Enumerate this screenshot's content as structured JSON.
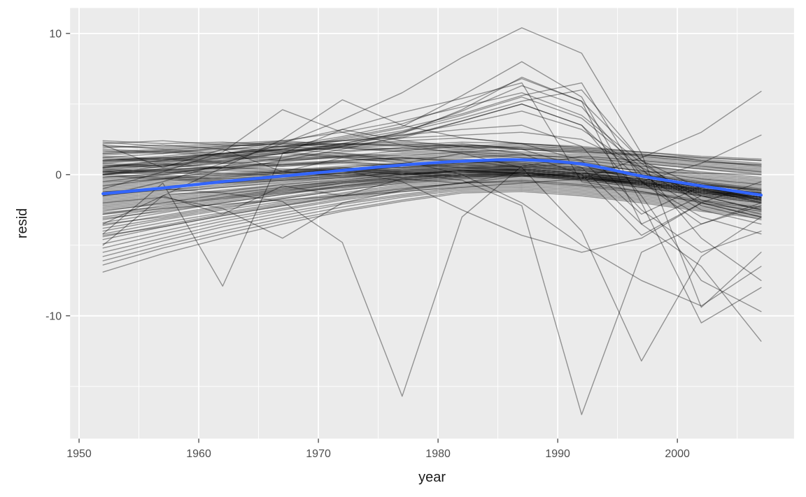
{
  "style": {
    "panel_fill": "#EBEBEB",
    "grid_color": "#FFFFFF",
    "tick_mark_color": "#333333",
    "tick_label_color": "#4D4D4D",
    "axis_title_color": "#1A1A1A",
    "series_color": "#000000",
    "series_opacity": 0.38,
    "smooth_color": "#3366FF"
  },
  "chart_data": {
    "type": "line",
    "title": "",
    "xlabel": "year",
    "ylabel": "resid",
    "legend": "none",
    "grid": true,
    "xlim": [
      1949.25,
      2009.75
    ],
    "ylim": [
      -18.7,
      11.8
    ],
    "x_ticks": [
      1950,
      1960,
      1970,
      1980,
      1990,
      2000
    ],
    "x_minor": [
      1955,
      1965,
      1975,
      1985,
      1995,
      2005
    ],
    "y_ticks": [
      -10,
      0,
      10
    ],
    "y_minor": [
      -15,
      -5,
      5
    ],
    "x": [
      1952,
      1957,
      1962,
      1967,
      1972,
      1977,
      1982,
      1987,
      1992,
      1997,
      2002,
      2007
    ],
    "smooth": {
      "name": "loess-smooth",
      "values": [
        -1.35,
        -0.95,
        -0.5,
        -0.1,
        0.3,
        0.68,
        0.95,
        1.05,
        0.75,
        -0.1,
        -0.8,
        -1.45
      ]
    },
    "series": [
      [
        -4.2,
        -0.6,
        -7.9,
        1.5,
        3.2,
        2.4,
        2.0,
        1.8,
        1.6,
        1.4,
        1.2,
        1.0
      ],
      [
        -1.2,
        -1.0,
        -1.3,
        -1.9,
        -4.8,
        -15.7,
        -3.0,
        0.6,
        1.3,
        1.0,
        0.6,
        0.2
      ],
      [
        0.2,
        0.4,
        0.5,
        0.4,
        0.3,
        0.1,
        -0.4,
        -2.2,
        -17.0,
        -5.5,
        -3.5,
        -2.2
      ],
      [
        -1.5,
        -0.5,
        0.8,
        2.2,
        3.9,
        5.8,
        8.3,
        10.4,
        8.6,
        1.5,
        -9.4,
        -5.5
      ],
      [
        0.0,
        0.6,
        1.2,
        1.8,
        2.6,
        3.4,
        5.6,
        8.0,
        5.5,
        -2.0,
        -10.5,
        -8.0
      ],
      [
        0.5,
        0.8,
        1.2,
        1.6,
        2.2,
        2.9,
        4.6,
        6.9,
        5.2,
        -3.5,
        -6.5,
        -11.8
      ],
      [
        0.3,
        0.7,
        1.1,
        1.5,
        2.0,
        2.6,
        3.8,
        5.0,
        3.5,
        -1.5,
        -7.5,
        -9.7
      ],
      [
        1.0,
        1.3,
        1.7,
        2.3,
        3.2,
        4.4,
        5.4,
        6.5,
        -0.5,
        -1.2,
        -2.0,
        -2.6
      ],
      [
        -3.5,
        -1.5,
        0.5,
        2.5,
        5.3,
        3.5,
        2.6,
        2.2,
        1.9,
        1.6,
        1.3,
        1.1
      ],
      [
        -1.0,
        0.2,
        1.6,
        4.6,
        3.0,
        2.1,
        1.5,
        1.2,
        1.0,
        0.6,
        0.2,
        -0.2
      ],
      [
        1.5,
        1.7,
        2.0,
        2.2,
        2.4,
        2.6,
        2.8,
        3.0,
        2.5,
        0.5,
        -4.5,
        -7.5
      ],
      [
        0.5,
        1.0,
        1.5,
        2.0,
        2.4,
        2.8,
        3.2,
        3.5,
        2.0,
        -2.5,
        -5.5,
        -4.0
      ],
      [
        1.0,
        1.2,
        1.5,
        1.8,
        1.5,
        1.0,
        0.0,
        -2.0,
        -5.0,
        -7.5,
        -9.3,
        -6.5
      ],
      [
        -1.5,
        -1.0,
        -0.5,
        0.0,
        0.3,
        -0.5,
        -2.5,
        -4.3,
        -5.5,
        -4.5,
        -2.0,
        -0.5
      ],
      [
        -2.8,
        -2.4,
        -2.1,
        -1.8,
        -1.5,
        -1.2,
        -0.9,
        -0.6,
        -0.3,
        1.2,
        3.0,
        5.9
      ],
      [
        0.1,
        0.3,
        0.5,
        0.7,
        0.9,
        1.1,
        1.3,
        1.1,
        0.7,
        -0.5,
        0.8,
        2.8
      ],
      [
        -2.0,
        -1.6,
        -2.4,
        -4.5,
        -2.0,
        -1.1,
        -0.6,
        -0.1,
        0.1,
        0.2,
        0.1,
        0.0
      ],
      [
        0.0,
        0.3,
        0.6,
        0.8,
        1.0,
        1.2,
        1.0,
        0.5,
        -4.0,
        -13.2,
        -5.8,
        -3.0
      ],
      [
        0.6,
        1.0,
        1.4,
        1.9,
        2.5,
        3.3,
        4.3,
        5.6,
        6.5,
        -0.5,
        -3.5,
        -2.0
      ],
      [
        0.0,
        0.4,
        0.9,
        1.5,
        2.2,
        3.0,
        4.0,
        5.2,
        6.0,
        1.0,
        -2.2,
        -3.2
      ],
      [
        0.5,
        0.9,
        1.3,
        1.8,
        2.4,
        3.1,
        4.2,
        5.5,
        4.0,
        0.5,
        -1.5,
        -2.5
      ],
      [
        -0.5,
        0.0,
        0.6,
        1.2,
        2.0,
        3.0,
        4.5,
        6.3,
        4.8,
        0.0,
        -2.5,
        -3.5
      ],
      [
        0.8,
        1.1,
        1.5,
        2.0,
        2.7,
        3.6,
        5.0,
        6.8,
        5.2,
        1.0,
        -1.0,
        -2.0
      ],
      [
        0.2,
        0.6,
        1.0,
        1.5,
        2.1,
        2.8,
        3.6,
        4.5,
        3.2,
        0.3,
        -2.0,
        -3.0
      ],
      [
        -0.8,
        -0.3,
        0.3,
        1.0,
        1.8,
        2.7,
        3.8,
        5.0,
        3.5,
        -0.5,
        -3.0,
        -4.2
      ],
      [
        1.2,
        1.5,
        1.9,
        2.4,
        3.0,
        3.8,
        4.8,
        5.8,
        4.2,
        0.8,
        -1.8,
        -2.8
      ],
      [
        0.4,
        0.7,
        1.0,
        1.3,
        1.6,
        1.9,
        2.2,
        1.8,
        0.5,
        -3.5,
        -1.5,
        -2.5
      ],
      [
        -0.2,
        0.1,
        0.5,
        0.9,
        1.3,
        1.7,
        2.0,
        1.5,
        0.0,
        -4.3,
        -2.0,
        -3.0
      ],
      [
        0.9,
        1.2,
        1.5,
        1.8,
        2.1,
        2.4,
        2.6,
        2.2,
        1.0,
        -2.8,
        -0.8,
        -1.8
      ],
      [
        -5.0,
        -1.5,
        -2.8,
        -0.8,
        -1.5,
        -0.3,
        -0.6,
        0.2,
        -0.2,
        -0.6,
        -1.0,
        -1.4
      ],
      [
        2.1,
        0.5,
        1.8,
        0.2,
        1.2,
        0.8,
        1.5,
        0.5,
        0.9,
        0.2,
        -0.4,
        -0.8
      ],
      [
        2.4,
        2.2,
        2.3,
        2.1,
        2.2,
        2.0,
        2.1,
        1.9,
        1.7,
        1.3,
        0.9,
        0.7
      ],
      [
        2.2,
        2.4,
        2.1,
        2.3,
        2.0,
        2.2,
        1.9,
        2.1,
        1.8,
        1.4,
        1.1,
        0.8
      ],
      [
        2.0,
        1.9,
        2.1,
        2.0,
        2.2,
        2.1,
        2.3,
        2.2,
        1.9,
        1.5,
        1.0,
        0.6
      ],
      [
        1.9,
        2.1,
        1.8,
        2.0,
        1.7,
        1.9,
        1.6,
        1.8,
        1.5,
        1.1,
        0.7,
        0.4
      ],
      [
        1.7,
        1.5,
        1.8,
        1.6,
        1.9,
        1.7,
        2.0,
        1.8,
        1.6,
        1.2,
        0.8,
        0.5
      ],
      [
        1.5,
        1.7,
        1.4,
        1.6,
        1.3,
        1.5,
        1.7,
        1.5,
        1.3,
        0.9,
        0.5,
        0.2
      ],
      [
        2.3,
        2.0,
        2.2,
        2.4,
        2.1,
        2.3,
        2.0,
        2.2,
        2.0,
        1.6,
        1.2,
        1.0
      ],
      [
        1.6,
        1.8,
        1.5,
        1.7,
        1.9,
        1.6,
        1.8,
        1.6,
        1.4,
        1.0,
        0.6,
        0.3
      ],
      [
        1.8,
        1.6,
        1.9,
        1.7,
        2.0,
        1.8,
        2.1,
        1.9,
        1.7,
        1.3,
        0.9,
        0.6
      ],
      [
        1.4,
        1.6,
        1.3,
        1.5,
        1.2,
        1.4,
        1.6,
        1.4,
        1.2,
        0.8,
        0.4,
        0.1
      ],
      [
        2.1,
        1.8,
        2.0,
        2.2,
        1.9,
        2.1,
        1.8,
        2.0,
        1.8,
        1.4,
        1.0,
        0.7
      ],
      [
        1.3,
        1.1,
        1.4,
        1.2,
        1.5,
        1.3,
        1.6,
        1.4,
        1.2,
        0.8,
        0.4,
        0.0
      ],
      [
        1.2,
        1.0,
        1.3,
        1.1,
        1.4,
        1.2,
        1.5,
        1.3,
        1.0,
        0.6,
        0.0,
        -0.4
      ],
      [
        1.0,
        1.2,
        0.9,
        1.1,
        1.3,
        1.0,
        1.2,
        1.4,
        1.1,
        0.7,
        0.1,
        -0.3
      ],
      [
        0.8,
        0.6,
        0.9,
        0.7,
        1.0,
        1.2,
        0.9,
        1.1,
        0.8,
        0.4,
        -0.2,
        -0.6
      ],
      [
        0.6,
        0.8,
        0.5,
        0.7,
        0.9,
        0.6,
        0.8,
        1.0,
        0.7,
        0.3,
        -0.3,
        -0.7
      ],
      [
        0.4,
        0.2,
        0.5,
        0.3,
        0.6,
        0.8,
        0.5,
        0.7,
        0.4,
        0.0,
        -0.6,
        -1.0
      ],
      [
        0.2,
        0.4,
        0.1,
        0.3,
        0.5,
        0.2,
        0.4,
        0.6,
        0.3,
        -0.1,
        -0.7,
        -1.1
      ],
      [
        0.0,
        0.2,
        -0.1,
        0.1,
        0.3,
        0.0,
        0.2,
        0.4,
        0.1,
        -0.3,
        -0.9,
        -1.3
      ],
      [
        -0.2,
        0.0,
        -0.3,
        -0.1,
        0.1,
        -0.2,
        0.0,
        0.2,
        -0.1,
        -0.5,
        -1.1,
        -1.5
      ],
      [
        -0.4,
        -0.2,
        -0.5,
        -0.3,
        -0.1,
        0.1,
        -0.2,
        0.0,
        -0.3,
        -0.7,
        -1.3,
        -1.7
      ],
      [
        0.9,
        1.1,
        0.8,
        1.0,
        1.2,
        0.9,
        1.1,
        0.9,
        0.7,
        0.3,
        -0.3,
        -0.7
      ],
      [
        0.7,
        0.5,
        0.8,
        0.6,
        0.9,
        0.7,
        1.0,
        0.8,
        0.5,
        0.1,
        -0.5,
        -0.9
      ],
      [
        0.5,
        0.7,
        0.4,
        0.6,
        0.8,
        0.5,
        0.7,
        0.5,
        0.3,
        -0.1,
        -0.7,
        -1.1
      ],
      [
        0.3,
        0.1,
        0.4,
        0.2,
        0.5,
        0.3,
        0.6,
        0.4,
        0.1,
        -0.3,
        -0.9,
        -1.3
      ],
      [
        0.1,
        0.3,
        0.0,
        0.2,
        0.4,
        0.1,
        0.3,
        0.1,
        -0.1,
        -0.5,
        -1.1,
        -1.5
      ],
      [
        -0.1,
        -0.3,
        0.0,
        0.2,
        -0.1,
        0.1,
        0.3,
        0.0,
        -0.2,
        -0.6,
        -1.2,
        -1.6
      ],
      [
        -0.3,
        -0.1,
        -0.4,
        -0.2,
        0.0,
        0.2,
        -0.1,
        0.1,
        -0.2,
        -0.6,
        -1.2,
        -1.6
      ],
      [
        -0.5,
        -0.3,
        -0.6,
        -0.4,
        -0.2,
        0.0,
        0.2,
        -0.1,
        -0.3,
        -0.7,
        -1.3,
        -1.7
      ],
      [
        1.1,
        0.9,
        1.2,
        1.0,
        1.3,
        1.1,
        1.4,
        1.2,
        0.9,
        0.5,
        -0.1,
        -0.5
      ],
      [
        0.0,
        -0.2,
        0.1,
        -0.1,
        0.2,
        0.0,
        0.3,
        0.1,
        -0.2,
        -0.6,
        -1.2,
        -1.6
      ],
      [
        0.2,
        0.0,
        0.3,
        0.1,
        0.4,
        0.2,
        0.5,
        0.3,
        0.0,
        -0.4,
        -1.0,
        -1.4
      ],
      [
        -0.6,
        -0.3,
        -0.1,
        0.2,
        0.5,
        0.8,
        1.0,
        0.8,
        0.5,
        0.0,
        -0.6,
        -1.1
      ],
      [
        -0.8,
        -0.5,
        -0.2,
        0.1,
        0.4,
        0.7,
        0.9,
        0.7,
        0.4,
        -0.1,
        -0.7,
        -1.2
      ],
      [
        -1.0,
        -0.7,
        -0.4,
        -0.1,
        0.1,
        0.6,
        0.8,
        0.6,
        0.3,
        -0.2,
        -0.8,
        -1.3
      ],
      [
        -1.2,
        -0.9,
        -0.6,
        -0.2,
        0.1,
        0.4,
        0.7,
        0.5,
        0.2,
        -0.3,
        -0.9,
        -1.4
      ],
      [
        -1.4,
        -1.1,
        -0.7,
        -0.4,
        0.0,
        0.3,
        0.5,
        0.4,
        0.1,
        -0.4,
        -1.0,
        -1.5
      ],
      [
        -1.6,
        -1.2,
        -0.9,
        -0.5,
        -0.2,
        0.2,
        0.4,
        0.3,
        0.0,
        -0.5,
        -1.1,
        -1.6
      ],
      [
        -1.8,
        -1.4,
        -1.2,
        -0.7,
        -0.3,
        0.0,
        0.3,
        0.2,
        -0.1,
        -0.6,
        -1.2,
        -1.7
      ],
      [
        -2.0,
        -1.6,
        -1.2,
        -0.8,
        -0.5,
        -0.1,
        0.2,
        0.1,
        -0.2,
        -0.7,
        -1.3,
        -1.8
      ],
      [
        -2.2,
        -1.8,
        -1.4,
        -1.0,
        -0.6,
        -0.3,
        0.0,
        0.0,
        -0.3,
        -0.8,
        -1.4,
        -1.9
      ],
      [
        -2.4,
        -2.0,
        -1.6,
        -1.2,
        -0.8,
        -0.4,
        -0.1,
        -0.1,
        -0.4,
        -0.9,
        -1.5,
        -2.0
      ],
      [
        -0.7,
        -0.4,
        -0.2,
        0.1,
        0.4,
        0.6,
        0.9,
        0.9,
        0.6,
        0.1,
        -0.5,
        -1.0
      ],
      [
        -0.9,
        -0.6,
        -0.3,
        0.0,
        0.3,
        0.5,
        0.8,
        0.8,
        0.5,
        0.0,
        -0.6,
        -1.1
      ],
      [
        -1.1,
        -0.8,
        -0.5,
        -0.1,
        0.2,
        0.5,
        0.7,
        0.7,
        0.4,
        -0.1,
        -0.7,
        -1.2
      ],
      [
        -1.3,
        -1.0,
        -0.6,
        -0.3,
        0.1,
        0.4,
        0.6,
        0.6,
        0.3,
        -0.2,
        -0.8,
        -1.3
      ],
      [
        -1.5,
        -1.1,
        -0.8,
        -0.4,
        -0.1,
        0.3,
        0.5,
        0.5,
        0.2,
        -0.3,
        -0.9,
        -1.4
      ],
      [
        -1.7,
        -1.3,
        -0.9,
        -0.6,
        -0.2,
        0.1,
        0.4,
        0.4,
        0.1,
        -0.4,
        -1.0,
        -1.5
      ],
      [
        -1.9,
        -1.5,
        -1.1,
        -0.7,
        -0.4,
        0.0,
        0.3,
        0.3,
        0.0,
        -0.5,
        -1.1,
        -1.6
      ],
      [
        -2.1,
        -1.7,
        -1.3,
        -0.9,
        -0.5,
        -0.2,
        0.1,
        0.2,
        -0.1,
        -0.6,
        -1.2,
        -1.7
      ],
      [
        -2.3,
        -1.9,
        -1.5,
        -1.1,
        -0.7,
        -0.3,
        0.0,
        0.1,
        -0.2,
        -0.7,
        -1.3,
        -1.8
      ],
      [
        -2.5,
        -2.1,
        -1.7,
        -1.3,
        -0.9,
        -0.5,
        -0.2,
        0.0,
        -0.3,
        -0.8,
        -1.4,
        -1.9
      ],
      [
        -2.6,
        -2.0,
        -1.4,
        -0.9,
        -0.4,
        0.0,
        0.3,
        0.4,
        0.1,
        -0.4,
        -1.0,
        -1.5
      ],
      [
        -2.8,
        -2.2,
        -1.6,
        -1.0,
        -0.5,
        -0.1,
        0.2,
        0.3,
        0.0,
        -0.5,
        -1.1,
        -1.6
      ],
      [
        -3.0,
        -2.4,
        -1.8,
        -1.2,
        -0.6,
        -0.2,
        0.1,
        0.2,
        -0.1,
        -0.6,
        -1.2,
        -1.7
      ],
      [
        -3.2,
        -2.5,
        -1.9,
        -1.3,
        -0.8,
        -0.3,
        0.0,
        0.1,
        -0.2,
        -0.7,
        -1.3,
        -1.8
      ],
      [
        -3.4,
        -2.7,
        -2.0,
        -1.4,
        -0.9,
        -0.4,
        -0.1,
        0.0,
        -0.3,
        -0.8,
        -1.4,
        -1.9
      ],
      [
        -3.6,
        -2.9,
        -2.2,
        -1.6,
        -1.0,
        -0.5,
        -0.2,
        -0.1,
        -0.4,
        -0.9,
        -1.5,
        -2.0
      ],
      [
        -3.8,
        -3.1,
        -2.4,
        -1.7,
        -1.1,
        -0.6,
        -0.3,
        -0.2,
        -0.5,
        -1.0,
        -1.6,
        -2.1
      ],
      [
        -4.0,
        -3.2,
        -2.5,
        -1.9,
        -1.3,
        -0.7,
        -0.4,
        -0.3,
        -0.6,
        -1.1,
        -1.7,
        -2.2
      ],
      [
        -4.2,
        -3.4,
        -2.7,
        -2.0,
        -1.4,
        -0.8,
        -0.5,
        -0.4,
        -0.7,
        -1.2,
        -1.8,
        -2.3
      ],
      [
        -4.4,
        -3.6,
        -2.8,
        -2.1,
        -1.5,
        -0.9,
        -0.6,
        -0.5,
        -0.8,
        -1.3,
        -1.9,
        -2.4
      ],
      [
        -2.7,
        -2.3,
        -1.7,
        -1.1,
        -0.6,
        -0.2,
        0.1,
        0.3,
        0.0,
        -0.5,
        -1.1,
        -1.6
      ],
      [
        -3.1,
        -2.6,
        -2.0,
        -1.4,
        -0.8,
        -0.4,
        -0.1,
        0.1,
        -0.2,
        -0.7,
        -1.3,
        -1.8
      ],
      [
        -3.5,
        -3.0,
        -2.3,
        -1.7,
        -1.1,
        -0.6,
        -0.3,
        -0.1,
        -0.4,
        -0.9,
        -1.5,
        -2.0
      ],
      [
        -4.3,
        -3.7,
        -2.9,
        -2.2,
        -1.6,
        -1.0,
        -0.6,
        -0.4,
        -0.7,
        -1.2,
        -1.8,
        -2.3
      ],
      [
        -4.6,
        -3.7,
        -2.9,
        -2.2,
        -1.5,
        -1.0,
        -0.6,
        -0.5,
        -0.8,
        -1.3,
        -1.9,
        -2.4
      ],
      [
        -4.9,
        -4.0,
        -3.1,
        -2.4,
        -1.7,
        -1.1,
        -0.7,
        -0.6,
        -0.9,
        -1.4,
        -2.0,
        -2.5
      ],
      [
        -5.2,
        -4.2,
        -3.3,
        -2.5,
        -1.8,
        -1.2,
        -0.8,
        -0.7,
        -1.0,
        -1.5,
        -2.1,
        -2.6
      ],
      [
        -5.5,
        -4.5,
        -3.5,
        -2.7,
        -2.0,
        -1.4,
        -0.9,
        -0.8,
        -1.1,
        -1.6,
        -2.2,
        -2.7
      ],
      [
        -5.8,
        -4.7,
        -3.7,
        -2.9,
        -2.1,
        -1.5,
        -1.0,
        -0.9,
        -1.2,
        -1.7,
        -2.3,
        -2.8
      ],
      [
        -6.1,
        -5.0,
        -4.0,
        -3.1,
        -2.3,
        -1.6,
        -1.1,
        -1.0,
        -1.3,
        -1.8,
        -2.4,
        -2.9
      ],
      [
        -6.4,
        -5.2,
        -4.2,
        -3.3,
        -2.5,
        -1.8,
        -1.2,
        -1.1,
        -1.4,
        -1.9,
        -2.5,
        -3.0
      ],
      [
        -6.9,
        -5.6,
        -4.5,
        -3.5,
        -2.6,
        -1.9,
        -1.3,
        -1.2,
        -1.5,
        -2.0,
        -2.6,
        -3.1
      ]
    ]
  }
}
